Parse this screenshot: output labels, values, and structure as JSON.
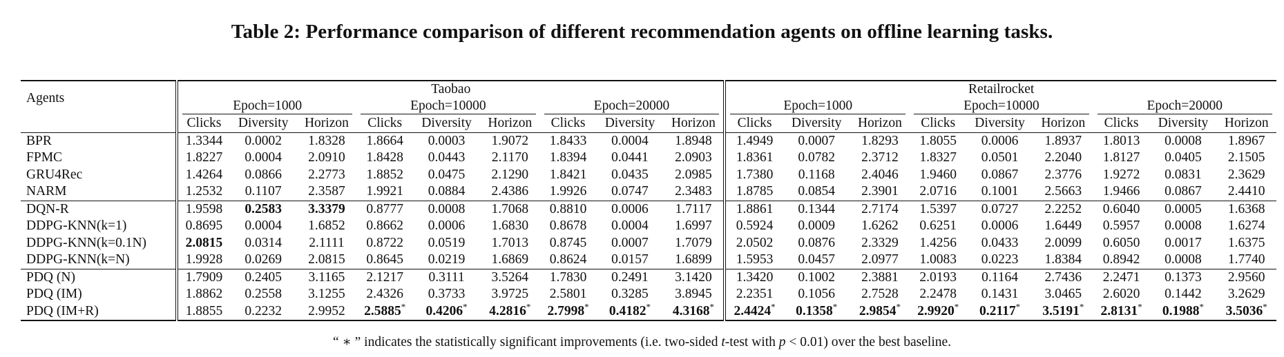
{
  "title": "Table 2: Performance comparison of different recommendation agents on offline learning tasks.",
  "header": {
    "agents_label": "Agents",
    "datasets": [
      "Taobao",
      "Retailrocket"
    ],
    "epochs": [
      "Epoch=1000",
      "Epoch=10000",
      "Epoch=20000"
    ],
    "metrics": [
      "Clicks",
      "Diversity",
      "Horizon"
    ]
  },
  "groups": [
    {
      "rows": [
        {
          "agent": "BPR",
          "cells": [
            "1.3344",
            "0.0002",
            "1.8328",
            "1.8664",
            "0.0003",
            "1.9072",
            "1.8433",
            "0.0004",
            "1.8948",
            "1.4949",
            "0.0007",
            "1.8293",
            "1.8055",
            "0.0006",
            "1.8937",
            "1.8013",
            "0.0008",
            "1.8967"
          ]
        },
        {
          "agent": "FPMC",
          "cells": [
            "1.8227",
            "0.0004",
            "2.0910",
            "1.8428",
            "0.0443",
            "2.1170",
            "1.8394",
            "0.0441",
            "2.0903",
            "1.8361",
            "0.0782",
            "2.3712",
            "1.8327",
            "0.0501",
            "2.2040",
            "1.8127",
            "0.0405",
            "2.1505"
          ]
        },
        {
          "agent": "GRU4Rec",
          "cells": [
            "1.4264",
            "0.0866",
            "2.2773",
            "1.8852",
            "0.0475",
            "2.1290",
            "1.8421",
            "0.0435",
            "2.0985",
            "1.7380",
            "0.1168",
            "2.4046",
            "1.9460",
            "0.0867",
            "2.3776",
            "1.9272",
            "0.0831",
            "2.3629"
          ]
        },
        {
          "agent": "NARM",
          "cells": [
            "1.2532",
            "0.1107",
            "2.3587",
            "1.9921",
            "0.0884",
            "2.4386",
            "1.9926",
            "0.0747",
            "2.3483",
            "1.8785",
            "0.0854",
            "2.3901",
            "2.0716",
            "0.1001",
            "2.5663",
            "1.9466",
            "0.0867",
            "2.4410"
          ]
        }
      ]
    },
    {
      "rows": [
        {
          "agent": "DQN-R",
          "cells": [
            "1.9598",
            "0.2583",
            "3.3379",
            "0.8777",
            "0.0008",
            "1.7068",
            "0.8810",
            "0.0006",
            "1.7117",
            "1.8861",
            "0.1344",
            "2.7174",
            "1.5397",
            "0.0727",
            "2.2252",
            "0.6040",
            "0.0005",
            "1.6368"
          ]
        },
        {
          "agent": "DDPG-KNN(k=1)",
          "cells": [
            "0.8695",
            "0.0004",
            "1.6852",
            "0.8662",
            "0.0006",
            "1.6830",
            "0.8678",
            "0.0004",
            "1.6997",
            "0.5924",
            "0.0009",
            "1.6262",
            "0.6251",
            "0.0006",
            "1.6449",
            "0.5957",
            "0.0008",
            "1.6274"
          ]
        },
        {
          "agent": "DDPG-KNN(k=0.1N)",
          "cells": [
            "2.0815",
            "0.0314",
            "2.1111",
            "0.8722",
            "0.0519",
            "1.7013",
            "0.8745",
            "0.0007",
            "1.7079",
            "2.0502",
            "0.0876",
            "2.3329",
            "1.4256",
            "0.0433",
            "2.0099",
            "0.6050",
            "0.0017",
            "1.6375"
          ]
        },
        {
          "agent": "DDPG-KNN(k=N)",
          "cells": [
            "1.9928",
            "0.0269",
            "2.0815",
            "0.8645",
            "0.0219",
            "1.6869",
            "0.8624",
            "0.0157",
            "1.6899",
            "1.5953",
            "0.0457",
            "2.0977",
            "1.0083",
            "0.0223",
            "1.8384",
            "0.8942",
            "0.0008",
            "1.7740"
          ]
        }
      ]
    },
    {
      "rows": [
        {
          "agent": "PDQ (N)",
          "cells": [
            "1.7909",
            "0.2405",
            "3.1165",
            "2.1217",
            "0.3111",
            "3.5264",
            "1.7830",
            "0.2491",
            "3.1420",
            "1.3420",
            "0.1002",
            "2.3881",
            "2.0193",
            "0.1164",
            "2.7436",
            "2.2471",
            "0.1373",
            "2.9560"
          ]
        },
        {
          "agent": "PDQ (IM)",
          "cells": [
            "1.8862",
            "0.2558",
            "3.1255",
            "2.4326",
            "0.3733",
            "3.9725",
            "2.5801",
            "0.3285",
            "3.8945",
            "2.2351",
            "0.1056",
            "2.7528",
            "2.2478",
            "0.1431",
            "3.0465",
            "2.6020",
            "0.1442",
            "3.2629"
          ]
        },
        {
          "agent": "PDQ (IM+R)",
          "cells": [
            "1.8855",
            "0.2232",
            "2.9952",
            "2.5885",
            "0.4206",
            "4.2816",
            "2.7998",
            "0.4182",
            "4.3168",
            "2.4424",
            "0.1358",
            "2.9854",
            "2.9920",
            "0.2117",
            "3.5191",
            "2.8131",
            "0.1988",
            "3.5036"
          ]
        }
      ]
    }
  ],
  "bold_cells": {
    "DQN-R": [
      1,
      2
    ],
    "DDPG-KNN(k=0.1N)": [
      0
    ],
    "PDQ (IM+R)": [
      3,
      4,
      5,
      6,
      7,
      8,
      9,
      10,
      11,
      12,
      13,
      14,
      15,
      16,
      17
    ]
  },
  "star_mark": "*",
  "footnote": {
    "prefix": "“ ∗ ” indicates the statistically significant improvements (i.e. two-sided ",
    "t": "t",
    "middle": "-test with ",
    "p": "p",
    "suffix": " < 0.01) over the best baseline."
  }
}
